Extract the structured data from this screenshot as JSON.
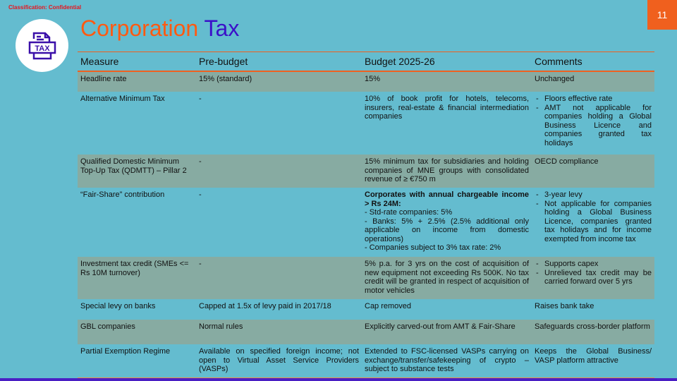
{
  "classification": "Classification: Confidential",
  "page_number": "11",
  "title": {
    "part1": "Corporation",
    "part2": "Tax"
  },
  "logo_text": "TAX",
  "headers": [
    "Measure",
    "Pre-budget",
    "Budget 2025-26",
    "Comments"
  ],
  "rows": [
    {
      "measure": "Headline rate",
      "pre": "15% (standard)",
      "budget": "15%",
      "comments": [
        "Unchanged"
      ],
      "bullets": false
    },
    {
      "measure": "Alternative Minimum Tax",
      "pre": "-",
      "budget": "10% of book profit for hotels, telecoms, insurers, real-estate & financial intermediation companies",
      "comments": [
        "Floors effective rate",
        "AMT not applicable for companies holding a Global Business Licence and companies granted tax holidays"
      ],
      "bullets": true
    },
    {
      "measure": "Qualified Domestic Minimum Top-Up Tax (QDMTT) – Pillar 2",
      "pre": "-",
      "budget": "15% minimum tax for subsidiaries and holding companies of MNE groups with consolidated revenue of ≥ €750 m",
      "comments": [
        "OECD compliance"
      ],
      "bullets": false
    },
    {
      "measure": "“Fair-Share” contribution",
      "pre": "-",
      "budget_bold": "Corporates with annual chargeable income > Rs 24M:",
      "budget_lines": [
        "- Std-rate companies: 5%",
        "- Banks: 5% + 2.5% (2.5% additional only applicable on income from domestic operations)",
        "- Companies subject to 3% tax rate: 2%"
      ],
      "comments": [
        "3-year levy",
        "Not applicable for companies holding a Global Business Licence, companies granted tax holidays and for income exempted from income tax"
      ],
      "bullets": true
    },
    {
      "measure": "Investment tax credit (SMEs <= Rs 10M turnover)",
      "pre": "-",
      "budget": "5% p.a. for 3 yrs on the cost of acquisition of new equipment not exceeding Rs 500K. No tax credit will be granted in respect of acquisition of motor vehicles",
      "comments": [
        "Supports capex",
        "Unrelieved tax credit may be carried forward over 5 yrs"
      ],
      "bullets": true
    },
    {
      "measure": "Special levy on banks",
      "pre": "Capped at 1.5x of levy paid in 2017/18",
      "budget": "Cap removed",
      "comments": [
        "Raises bank take"
      ],
      "bullets": false
    },
    {
      "measure": "GBL companies",
      "pre": "Normal rules",
      "budget": "Explicitly carved-out from AMT & Fair-Share",
      "comments": [
        "Safeguards cross-border platform"
      ],
      "bullets": false
    },
    {
      "measure": "Partial Exemption Regime",
      "pre": "Available on specified foreign income; not open to Virtual Asset Service Providers (VASPs)",
      "budget": "Extended to FSC-licensed VASPs carrying on exchange/transfer/safekeeping of crypto – subject to substance tests",
      "comments": [
        "Keeps the Global Business/ VASP platform attractive"
      ],
      "bullets": false
    }
  ]
}
